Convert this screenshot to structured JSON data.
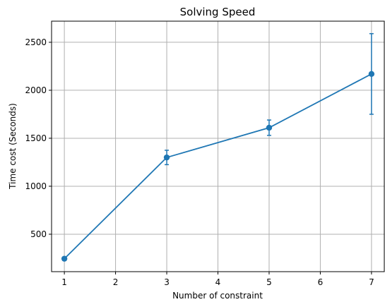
{
  "chart_data": {
    "type": "line",
    "title": "Solving Speed",
    "xlabel": "Number of constraint",
    "ylabel": "Time cost (Seconds)",
    "xlim": [
      0.75,
      7.25
    ],
    "ylim": [
      110,
      2720
    ],
    "x_ticks": [
      1,
      2,
      3,
      4,
      5,
      6,
      7
    ],
    "y_ticks": [
      500,
      1000,
      1500,
      2000,
      2500
    ],
    "grid": true,
    "series": [
      {
        "x": [
          1,
          3,
          5,
          7
        ],
        "values": [
          245,
          1300,
          1610,
          2170
        ],
        "error": [
          0,
          75,
          80,
          420
        ],
        "color": "#1f77b4"
      }
    ]
  }
}
